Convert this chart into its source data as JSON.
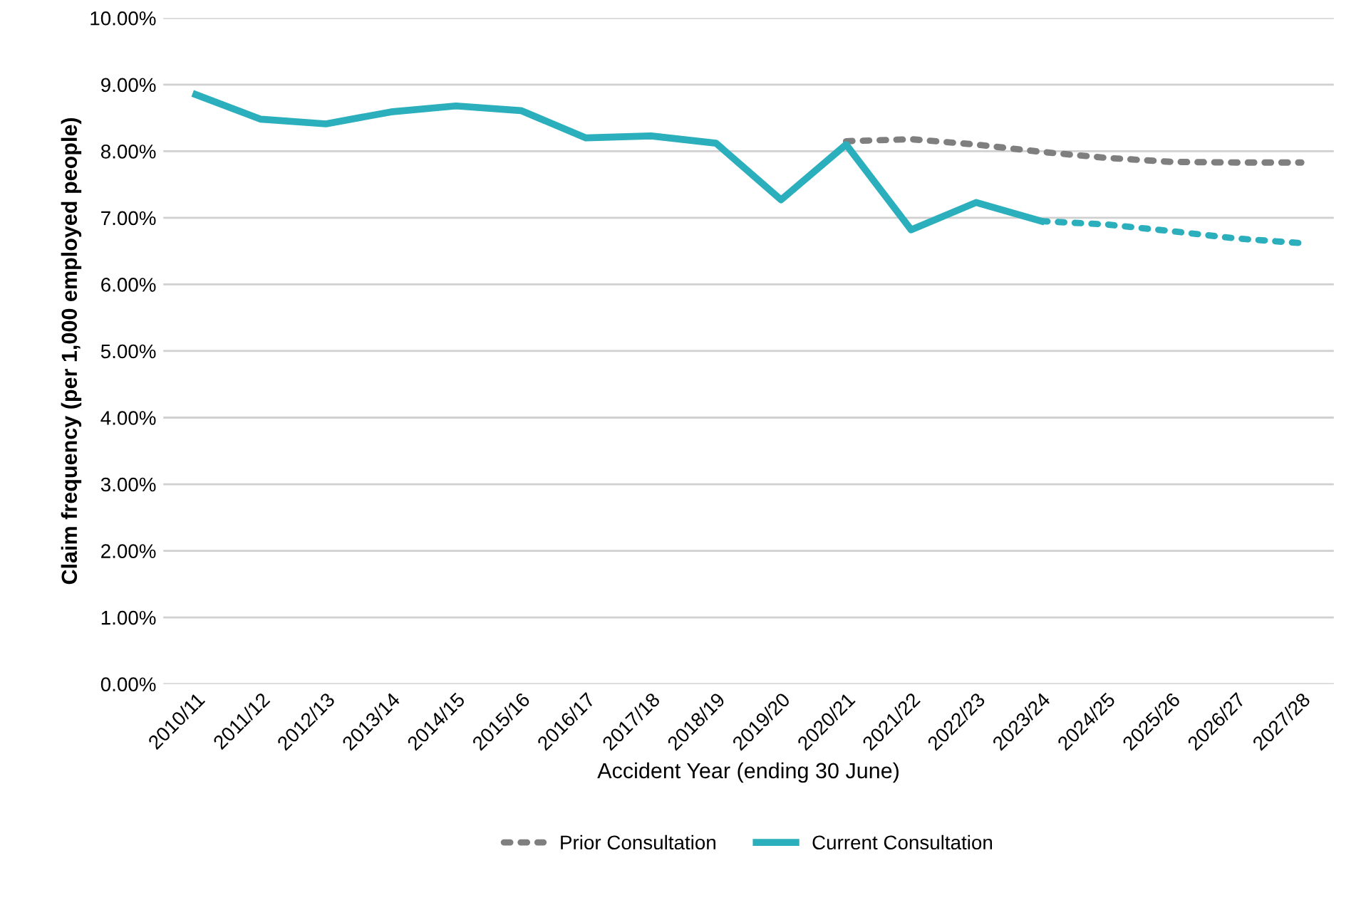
{
  "chart_data": {
    "type": "line",
    "xlabel": "Accident Year (ending 30 June)",
    "ylabel": "Claim frequency (per 1,000 employed people)",
    "categories": [
      "2010/11",
      "2011/12",
      "2012/13",
      "2013/14",
      "2014/15",
      "2015/16",
      "2016/17",
      "2017/18",
      "2018/19",
      "2019/20",
      "2020/21",
      "2021/22",
      "2022/23",
      "2023/24",
      "2024/25",
      "2025/26",
      "2026/27",
      "2027/28"
    ],
    "series": [
      {
        "name": "Prior Consultation",
        "color": "#7f7f7f",
        "line_style": "dotted",
        "values": [
          null,
          null,
          null,
          null,
          null,
          null,
          null,
          null,
          null,
          null,
          8.15,
          8.18,
          8.1,
          7.99,
          7.9,
          7.84,
          7.83,
          7.83
        ]
      },
      {
        "name": "Current Consultation",
        "color": "#2bafbc",
        "line_style": "solid",
        "values": [
          8.85,
          8.48,
          8.41,
          8.59,
          8.68,
          8.61,
          8.2,
          8.23,
          8.12,
          7.27,
          8.1,
          6.82,
          7.23,
          6.95,
          null,
          null,
          null,
          null
        ]
      },
      {
        "color": "#2bafbc",
        "line_style": "dotted",
        "values": [
          null,
          null,
          null,
          null,
          null,
          null,
          null,
          null,
          null,
          null,
          null,
          null,
          null,
          6.95,
          6.9,
          6.8,
          6.69,
          6.62
        ]
      }
    ],
    "ylim": [
      0,
      10
    ],
    "yticks": [
      {
        "value": 0,
        "label": "0.00%"
      },
      {
        "value": 1,
        "label": "1.00%"
      },
      {
        "value": 2,
        "label": "2.00%"
      },
      {
        "value": 3,
        "label": "3.00%"
      },
      {
        "value": 4,
        "label": "4.00%"
      },
      {
        "value": 5,
        "label": "5.00%"
      },
      {
        "value": 6,
        "label": "6.00%"
      },
      {
        "value": 7,
        "label": "7.00%"
      },
      {
        "value": 8,
        "label": "8.00%"
      },
      {
        "value": 9,
        "label": "9.00%"
      },
      {
        "value": 10,
        "label": "10.00%"
      }
    ],
    "grid": "y",
    "legend": "bottom",
    "marker": "none"
  }
}
